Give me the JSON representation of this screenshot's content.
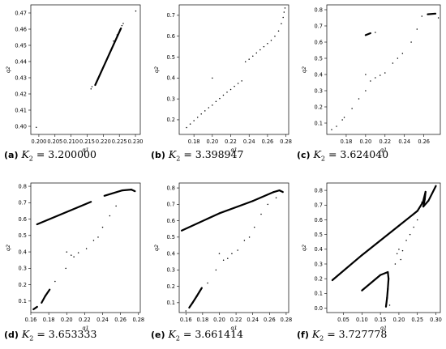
{
  "chart_data": [
    {
      "type": "scatter",
      "xlabel": "q1",
      "ylabel": "q2",
      "xlim": [
        0.1975,
        0.2315
      ],
      "ylim": [
        0.395,
        0.475
      ],
      "xticks": [
        "0.200",
        "0.205",
        "0.210",
        "0.215",
        "0.220",
        "0.225",
        "0.230"
      ],
      "yticks": [
        "0.40",
        "0.41",
        "0.42",
        "0.43",
        "0.44",
        "0.45",
        "0.46",
        "0.47"
      ],
      "caption": {
        "tag": "(a)",
        "var": "K",
        "sub": "2",
        "eq": " = 3.200000"
      },
      "segments": [
        [
          0.2175,
          0.4255,
          0.2255,
          0.4605
        ]
      ],
      "dots": [
        [
          0.1992,
          0.3994
        ],
        [
          0.2162,
          0.4231
        ],
        [
          0.2165,
          0.4245
        ],
        [
          0.2232,
          0.4527
        ],
        [
          0.2243,
          0.4565
        ],
        [
          0.2251,
          0.4595
        ],
        [
          0.2258,
          0.4622
        ],
        [
          0.2262,
          0.4635
        ],
        [
          0.2301,
          0.4712
        ]
      ]
    },
    {
      "type": "scatter",
      "xlabel": "q1",
      "ylabel": "q2",
      "xlim": [
        0.164,
        0.283
      ],
      "ylim": [
        0.13,
        0.75
      ],
      "xticks": [
        "0.18",
        "0.20",
        "0.22",
        "0.24",
        "0.26",
        "0.28"
      ],
      "yticks": [
        "0.2",
        "0.3",
        "0.4",
        "0.5",
        "0.6",
        "0.7"
      ],
      "caption": {
        "tag": "(b)",
        "var": "K",
        "sub": "2",
        "eq": " = 3.398947"
      },
      "segments": [],
      "dots": [
        [
          0.172,
          0.163
        ],
        [
          0.176,
          0.18
        ],
        [
          0.18,
          0.196
        ],
        [
          0.184,
          0.212
        ],
        [
          0.188,
          0.228
        ],
        [
          0.192,
          0.243
        ],
        [
          0.196,
          0.258
        ],
        [
          0.2,
          0.27
        ],
        [
          0.2,
          0.4
        ],
        [
          0.204,
          0.288
        ],
        [
          0.208,
          0.302
        ],
        [
          0.212,
          0.318
        ],
        [
          0.216,
          0.332
        ],
        [
          0.22,
          0.345
        ],
        [
          0.224,
          0.36
        ],
        [
          0.228,
          0.374
        ],
        [
          0.232,
          0.386
        ],
        [
          0.236,
          0.478
        ],
        [
          0.24,
          0.49
        ],
        [
          0.244,
          0.505
        ],
        [
          0.248,
          0.52
        ],
        [
          0.252,
          0.535
        ],
        [
          0.256,
          0.55
        ],
        [
          0.26,
          0.565
        ],
        [
          0.264,
          0.58
        ],
        [
          0.268,
          0.6
        ],
        [
          0.272,
          0.625
        ],
        [
          0.275,
          0.66
        ],
        [
          0.277,
          0.69
        ],
        [
          0.278,
          0.715
        ],
        [
          0.279,
          0.735
        ]
      ]
    },
    {
      "type": "scatter",
      "xlabel": "q1",
      "ylabel": "q2",
      "xlim": [
        0.16,
        0.277
      ],
      "ylim": [
        0.03,
        0.83
      ],
      "xticks": [
        "0.18",
        "0.20",
        "0.22",
        "0.24",
        "0.26"
      ],
      "yticks": [
        "0.1",
        "0.2",
        "0.3",
        "0.4",
        "0.5",
        "0.6",
        "0.7",
        "0.8"
      ],
      "caption": {
        "tag": "(c)",
        "var": "K",
        "sub": "2",
        "eq": " = 3.624040"
      },
      "segments": [
        [
          0.2,
          0.643,
          0.205,
          0.655
        ],
        [
          0.264,
          0.772,
          0.272,
          0.776
        ]
      ],
      "dots": [
        [
          0.165,
          0.06
        ],
        [
          0.17,
          0.08
        ],
        [
          0.176,
          0.12
        ],
        [
          0.178,
          0.135
        ],
        [
          0.186,
          0.19
        ],
        [
          0.193,
          0.25
        ],
        [
          0.2,
          0.3
        ],
        [
          0.2,
          0.4
        ],
        [
          0.205,
          0.36
        ],
        [
          0.21,
          0.38
        ],
        [
          0.215,
          0.395
        ],
        [
          0.22,
          0.41
        ],
        [
          0.228,
          0.47
        ],
        [
          0.233,
          0.5
        ],
        [
          0.238,
          0.53
        ],
        [
          0.247,
          0.6
        ],
        [
          0.253,
          0.68
        ],
        [
          0.258,
          0.76
        ],
        [
          0.21,
          0.66
        ],
        [
          0.275,
          0.75
        ]
      ]
    },
    {
      "type": "scatter",
      "xlabel": "q1",
      "ylabel": "q2",
      "xlim": [
        0.16,
        0.282
      ],
      "ylim": [
        0.03,
        0.82
      ],
      "xticks": [
        "0.16",
        "0.18",
        "0.20",
        "0.22",
        "0.24",
        "0.26",
        "0.28"
      ],
      "yticks": [
        "0.1",
        "0.2",
        "0.3",
        "0.4",
        "0.5",
        "0.6",
        "0.7",
        "0.8"
      ],
      "caption": {
        "tag": "(d)",
        "var": "K",
        "sub": "2",
        "eq": " = 3.653333"
      },
      "segments": [
        [
          0.167,
          0.568,
          0.227,
          0.705
        ],
        [
          0.242,
          0.742,
          0.262,
          0.775
        ],
        [
          0.262,
          0.775,
          0.272,
          0.78
        ],
        [
          0.272,
          0.78,
          0.276,
          0.77
        ],
        [
          0.172,
          0.09,
          0.176,
          0.13
        ],
        [
          0.176,
          0.13,
          0.181,
          0.17
        ],
        [
          0.163,
          0.05,
          0.167,
          0.065
        ]
      ],
      "dots": [
        [
          0.187,
          0.22
        ],
        [
          0.199,
          0.3
        ],
        [
          0.2,
          0.4
        ],
        [
          0.205,
          0.38
        ],
        [
          0.208,
          0.37
        ],
        [
          0.213,
          0.395
        ],
        [
          0.222,
          0.42
        ],
        [
          0.23,
          0.47
        ],
        [
          0.235,
          0.49
        ],
        [
          0.24,
          0.55
        ],
        [
          0.248,
          0.62
        ],
        [
          0.255,
          0.68
        ]
      ]
    },
    {
      "type": "scatter",
      "xlabel": "q1",
      "ylabel": "q2",
      "xlim": [
        0.152,
        0.283
      ],
      "ylim": [
        0.04,
        0.83
      ],
      "xticks": [
        "0.16",
        "0.18",
        "0.20",
        "0.22",
        "0.24",
        "0.26",
        "0.28"
      ],
      "yticks": [
        "0.1",
        "0.2",
        "0.3",
        "0.4",
        "0.5",
        "0.6",
        "0.7",
        "0.8"
      ],
      "caption": {
        "tag": "(e)",
        "var": "K",
        "sub": "2",
        "eq": " = 3.661414"
      },
      "segments": [
        [
          0.155,
          0.54,
          0.2,
          0.645
        ],
        [
          0.2,
          0.645,
          0.24,
          0.72
        ],
        [
          0.24,
          0.72,
          0.265,
          0.775
        ],
        [
          0.265,
          0.775,
          0.272,
          0.785
        ],
        [
          0.272,
          0.785,
          0.276,
          0.775
        ],
        [
          0.164,
          0.07,
          0.168,
          0.1
        ],
        [
          0.168,
          0.1,
          0.173,
          0.14
        ],
        [
          0.173,
          0.14,
          0.179,
          0.19
        ]
      ],
      "dots": [
        [
          0.16,
          0.05
        ],
        [
          0.186,
          0.22
        ],
        [
          0.196,
          0.3
        ],
        [
          0.2,
          0.4
        ],
        [
          0.205,
          0.36
        ],
        [
          0.21,
          0.37
        ],
        [
          0.215,
          0.4
        ],
        [
          0.222,
          0.42
        ],
        [
          0.23,
          0.48
        ],
        [
          0.236,
          0.5
        ],
        [
          0.242,
          0.56
        ],
        [
          0.25,
          0.64
        ],
        [
          0.258,
          0.7
        ],
        [
          0.268,
          0.74
        ]
      ]
    },
    {
      "type": "scatter",
      "xlabel": "q1",
      "ylabel": "q2",
      "xlim": [
        0.005,
        0.312
      ],
      "ylim": [
        -0.03,
        0.85
      ],
      "xticks": [
        "0.05",
        "0.10",
        "0.15",
        "0.20",
        "0.25",
        "0.30"
      ],
      "yticks": [
        "0.0",
        "0.1",
        "0.2",
        "0.3",
        "0.4",
        "0.5",
        "0.6",
        "0.7",
        "0.8"
      ],
      "caption": {
        "tag": "(f)",
        "var": "K",
        "sub": "2",
        "eq": " = 3.727778"
      },
      "segments": [
        [
          0.02,
          0.19,
          0.1,
          0.36
        ],
        [
          0.1,
          0.36,
          0.2,
          0.56
        ],
        [
          0.2,
          0.56,
          0.25,
          0.66
        ],
        [
          0.25,
          0.66,
          0.265,
          0.72
        ],
        [
          0.265,
          0.72,
          0.272,
          0.79
        ],
        [
          0.272,
          0.79,
          0.27,
          0.74
        ],
        [
          0.27,
          0.74,
          0.266,
          0.69
        ],
        [
          0.266,
          0.69,
          0.28,
          0.73
        ],
        [
          0.28,
          0.73,
          0.3,
          0.83
        ],
        [
          0.1,
          0.12,
          0.15,
          0.225
        ],
        [
          0.15,
          0.225,
          0.17,
          0.245
        ],
        [
          0.17,
          0.245,
          0.172,
          0.2
        ],
        [
          0.172,
          0.2,
          0.17,
          0.13
        ],
        [
          0.17,
          0.13,
          0.168,
          0.07
        ],
        [
          0.168,
          0.07,
          0.165,
          0.01
        ]
      ],
      "dots": [
        [
          0.175,
          0.02
        ],
        [
          0.19,
          0.3
        ],
        [
          0.195,
          0.37
        ],
        [
          0.2,
          0.4
        ],
        [
          0.205,
          0.33
        ],
        [
          0.21,
          0.39
        ],
        [
          0.22,
          0.46
        ],
        [
          0.23,
          0.5
        ],
        [
          0.24,
          0.55
        ],
        [
          0.25,
          0.6
        ],
        [
          0.262,
          0.72
        ]
      ]
    }
  ]
}
